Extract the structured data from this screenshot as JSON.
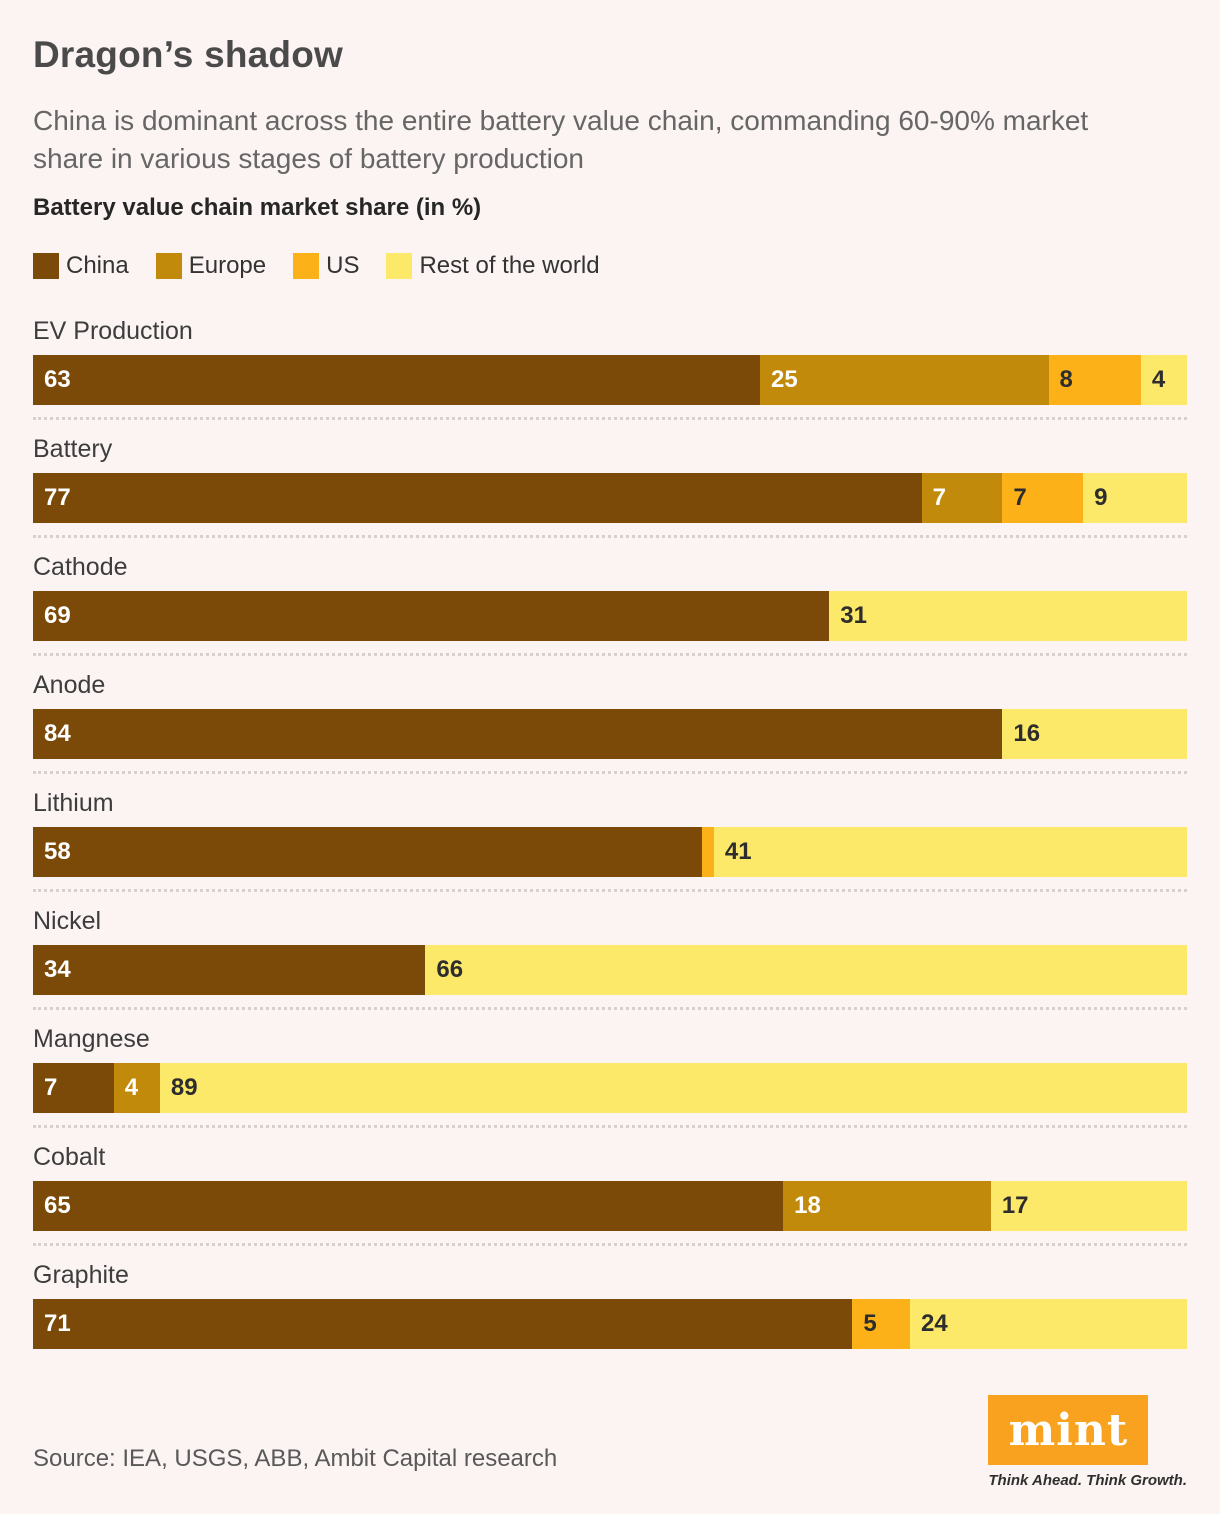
{
  "page_background": "#FCF4F3",
  "header": {
    "title": "Dragon’s shadow",
    "subtitle_lines": [
      "China is dominant across the entire battery value chain, commanding 60-90% market",
      "share in various stages of battery production"
    ],
    "chart_heading": "Battery value chain market share (in %)"
  },
  "legend": [
    {
      "label": "China",
      "color": "#7B4A08"
    },
    {
      "label": "Europe",
      "color": "#C18A0A"
    },
    {
      "label": "US",
      "color": "#FBB117"
    },
    {
      "label": "Rest of the world",
      "color": "#FCE96A"
    }
  ],
  "chart_data": {
    "type": "bar",
    "orientation": "horizontal-stacked",
    "unit": "%",
    "xlim": [
      0,
      100
    ],
    "grid": false,
    "legend_position": "top",
    "value_label_min": 4,
    "categories": [
      "EV Production",
      "Battery",
      "Cathode",
      "Anode",
      "Lithium",
      "Nickel",
      "Mangnese",
      "Cobalt",
      "Graphite"
    ],
    "series": [
      {
        "name": "China",
        "color": "#7B4A08",
        "label_color": "#FFFFFF",
        "values": [
          63,
          77,
          69,
          84,
          58,
          34,
          7,
          65,
          71
        ]
      },
      {
        "name": "Europe",
        "color": "#C18A0A",
        "label_color": "#FFFFFF",
        "values": [
          25,
          7,
          0,
          0,
          0,
          0,
          4,
          18,
          0
        ]
      },
      {
        "name": "US",
        "color": "#FBB117",
        "label_color": "#2D2D2D",
        "values": [
          8,
          7,
          0,
          0,
          1,
          0,
          0,
          0,
          5
        ]
      },
      {
        "name": "Rest of the world",
        "color": "#FCE96A",
        "label_color": "#2D2D2D",
        "values": [
          4,
          9,
          31,
          16,
          41,
          66,
          89,
          17,
          24
        ]
      }
    ]
  },
  "footer": {
    "source": "Source: IEA, USGS, ABB, Ambit Capital research",
    "logo": {
      "text": "mint",
      "tagline": "Think Ahead. Think Growth.",
      "color": "#F9A21F"
    }
  }
}
